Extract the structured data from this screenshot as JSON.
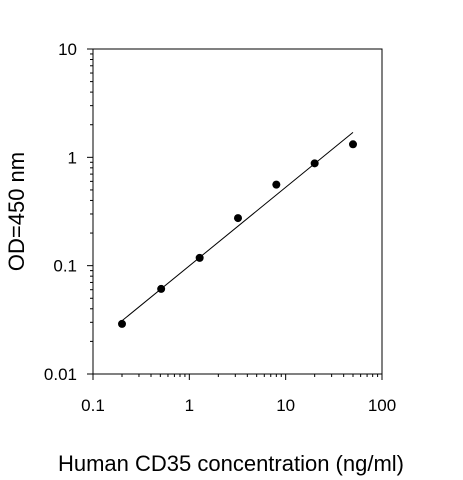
{
  "chart_data": {
    "type": "scatter",
    "title": "",
    "xlabel": "Human CD35 concentration (ng/ml)",
    "ylabel": "OD=450 nm",
    "xscale": "log",
    "yscale": "log",
    "xlim": [
      0.1,
      100
    ],
    "ylim": [
      0.01,
      10
    ],
    "grid": false,
    "legend": "none",
    "x_ticks": [
      0.1,
      1,
      10,
      100
    ],
    "x_tick_labels": [
      "0.1",
      "1",
      "10",
      "100"
    ],
    "y_ticks": [
      0.01,
      0.1,
      1,
      10
    ],
    "y_tick_labels": [
      "0.01",
      "0.1",
      "1",
      "10"
    ],
    "series": [
      {
        "x": [
          0.2,
          0.51,
          1.28,
          3.2,
          8.0,
          20.0,
          50.0
        ],
        "y": [
          0.029,
          0.061,
          0.118,
          0.275,
          0.56,
          0.88,
          1.32
        ]
      }
    ],
    "fit_line": {
      "x": [
        0.2,
        50.0
      ],
      "y": [
        0.031,
        1.7
      ]
    },
    "colors": {
      "points": "#000000",
      "line": "#000000",
      "axes": "#000000"
    }
  }
}
